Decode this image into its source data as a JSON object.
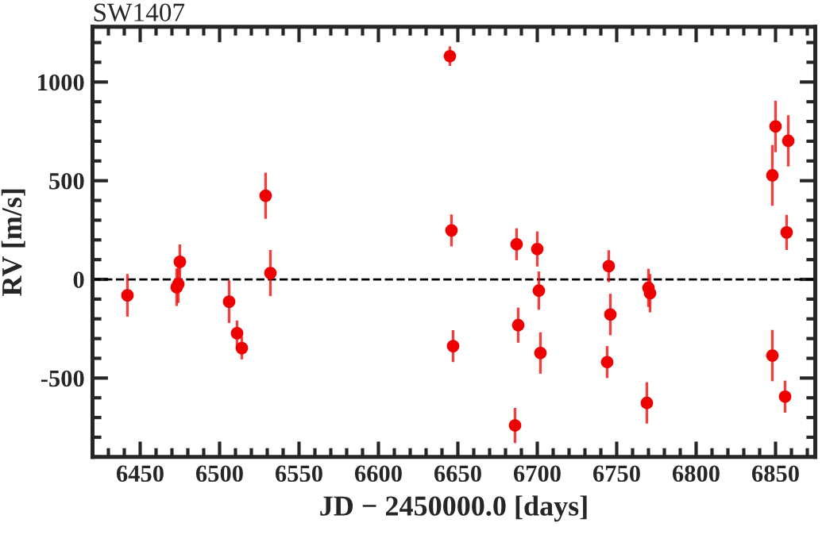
{
  "chart_data": {
    "type": "scatter",
    "title": "SW1407",
    "xlabel": "JD − 2450000.0 [days]",
    "ylabel": "RV [m/s]",
    "x": [
      6442,
      6473,
      6474,
      6475,
      6506,
      6511,
      6514,
      6529,
      6532,
      6645,
      6646,
      6647,
      6687,
      6688,
      6686,
      6700,
      6701,
      6702,
      6745,
      6746,
      6744,
      6770,
      6771,
      6769,
      6850,
      6848,
      6858,
      6857,
      6848,
      6856
    ],
    "values": [
      -81,
      -40,
      -24,
      89,
      -113,
      -273,
      -348,
      424,
      32,
      1131,
      248,
      -338,
      178,
      -232,
      -740,
      154,
      -57,
      -373,
      67,
      -178,
      -419,
      -43,
      -70,
      -626,
      775,
      527,
      702,
      238,
      -386,
      -594
    ],
    "errors": [
      108,
      95,
      95,
      88,
      108,
      65,
      57,
      117,
      117,
      49,
      81,
      81,
      81,
      89,
      89,
      89,
      97,
      105,
      81,
      105,
      81,
      97,
      97,
      105,
      130,
      154,
      130,
      89,
      130,
      81
    ],
    "color": "#ee0000",
    "marker": "circle",
    "xlim": [
      6420,
      6875
    ],
    "ylim": [
      -900,
      1280
    ],
    "xticks": [
      6450,
      6500,
      6550,
      6600,
      6650,
      6700,
      6750,
      6800,
      6850
    ],
    "yticks": [
      -500,
      0,
      500,
      1000
    ],
    "ref_lines": [
      {
        "axis": "y",
        "value": 0,
        "color": "#000000",
        "line_style": "dashed"
      }
    ],
    "grid": false,
    "legend": false
  }
}
